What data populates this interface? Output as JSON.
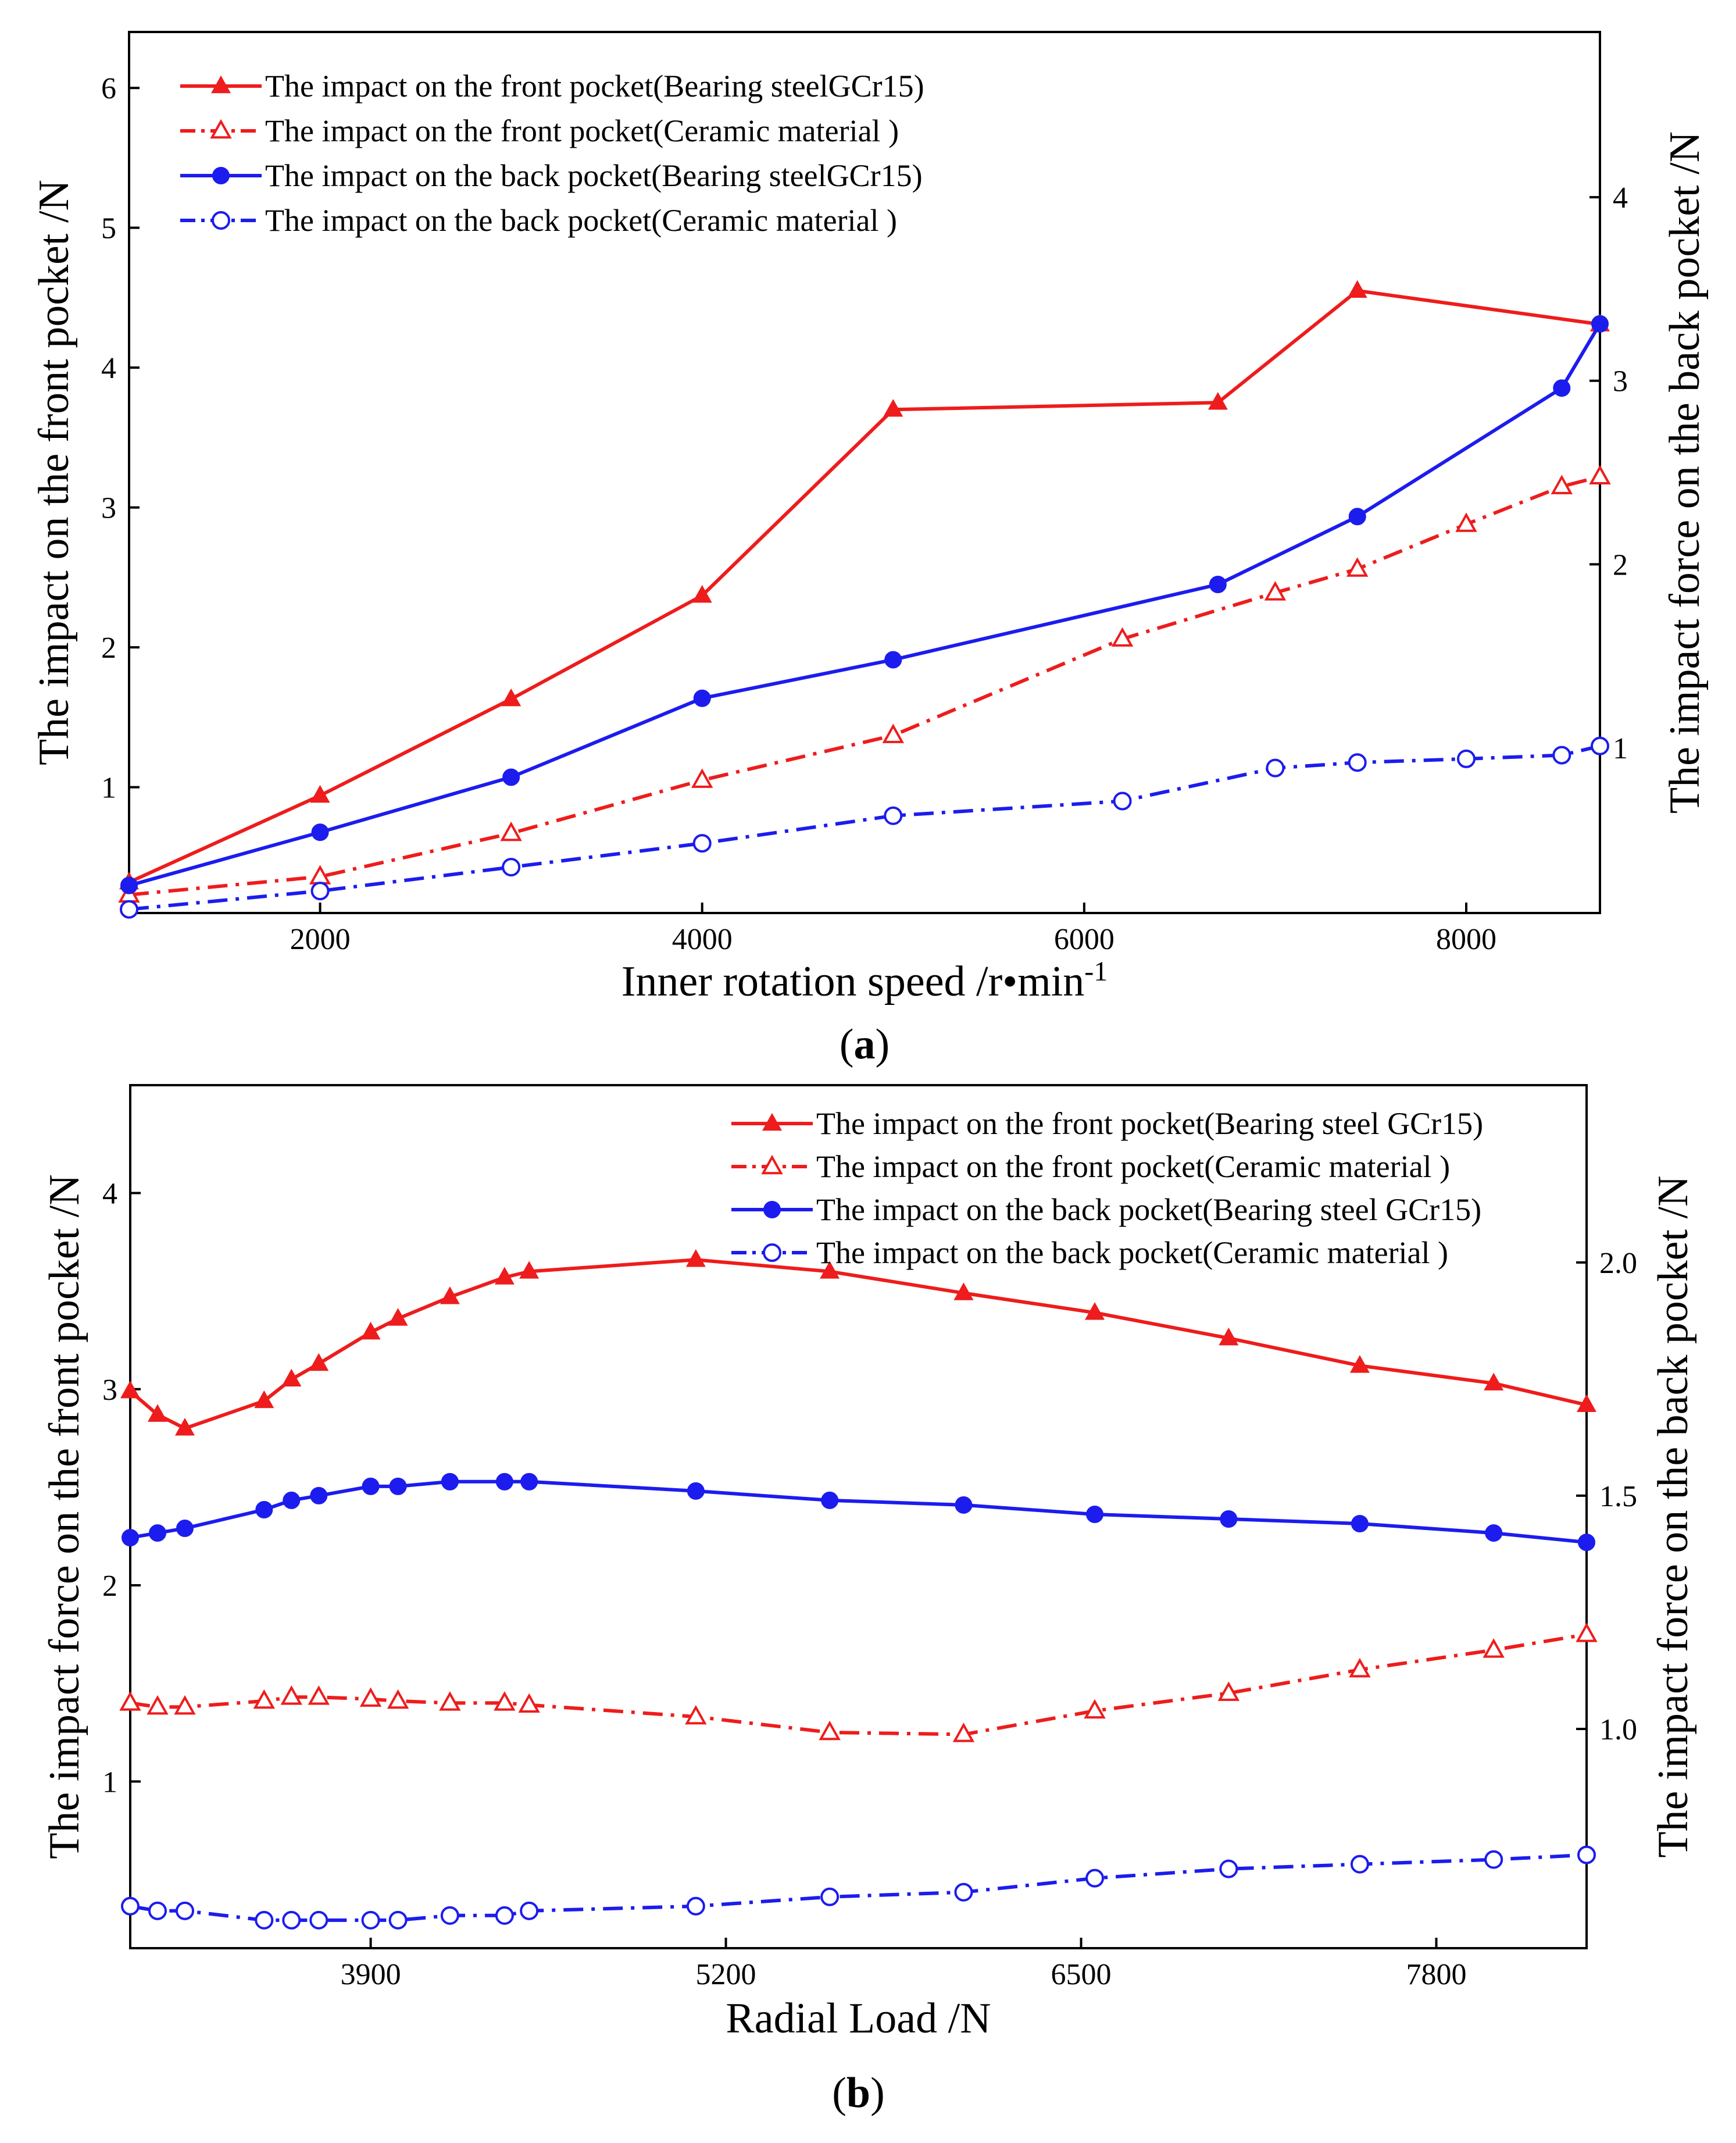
{
  "colors": {
    "red": "#ee1c1c",
    "blue": "#1c1cee",
    "axis": "#000000"
  },
  "chart_data": [
    {
      "type": "line",
      "caption_open": "(",
      "caption_letter": "a",
      "caption_close": ")",
      "xlabel_main": "Inner rotation speed  /r•min",
      "xlabel_sup": "-1",
      "ylabel_left": "The impact on the front pocket /N",
      "ylabel_right": "The impact force on the back pocket /N",
      "xlim": [
        1000,
        8700
      ],
      "ylim_left": [
        0.1,
        6.4
      ],
      "ylim_right": [
        0.1,
        4.9
      ],
      "xticks": [
        2000,
        4000,
        6000,
        8000
      ],
      "yticks_left": [
        1,
        2,
        3,
        4,
        5,
        6
      ],
      "yticks_right": [
        1,
        2,
        3,
        4
      ],
      "tick_labels_x": [
        "2000",
        "4000",
        "6000",
        "8000"
      ],
      "tick_labels_left": [
        "1",
        "2",
        "3",
        "4",
        "5",
        "6"
      ],
      "tick_labels_right": [
        "1",
        "2",
        "3",
        "4"
      ],
      "legend_position": "top-left",
      "series": [
        {
          "name": "The impact on the front pocket(Bearing steelGCr15)",
          "axis": "left",
          "color": "#ee1c1c",
          "dash": "solid",
          "marker": "triangle",
          "filled": true,
          "x": [
            1000,
            2000,
            3000,
            4000,
            5000,
            6700,
            7430,
            8700
          ],
          "y": [
            0.32,
            0.94,
            1.63,
            2.37,
            3.7,
            3.75,
            4.55,
            4.31
          ]
        },
        {
          "name": "The impact on the front pocket(Ceramic   material  )",
          "axis": "left",
          "color": "#ee1c1c",
          "dash": "dashdot",
          "marker": "triangle",
          "filled": false,
          "x": [
            1000,
            2000,
            3000,
            4000,
            5000,
            6200,
            7000,
            7430,
            8000,
            8500,
            8700
          ],
          "y": [
            0.23,
            0.36,
            0.67,
            1.05,
            1.37,
            2.06,
            2.39,
            2.56,
            2.88,
            3.15,
            3.22
          ]
        },
        {
          "name": "The impact on the back pocket(Bearing steelGCr15)",
          "axis": "right",
          "color": "#1c1cee",
          "dash": "solid",
          "marker": "circle",
          "filled": true,
          "x": [
            1000,
            2000,
            3000,
            4000,
            5000,
            6700,
            7430,
            8500,
            8700
          ],
          "y": [
            0.25,
            0.54,
            0.84,
            1.27,
            1.48,
            1.89,
            2.26,
            2.96,
            3.31
          ]
        },
        {
          "name": "The impact on the back pocket(Ceramic   material  )",
          "axis": "right",
          "color": "#1c1cee",
          "dash": "dashdot",
          "marker": "circle",
          "filled": false,
          "x": [
            1000,
            2000,
            3000,
            4000,
            5000,
            6200,
            7000,
            7430,
            8000,
            8500,
            8700
          ],
          "y": [
            0.12,
            0.22,
            0.35,
            0.48,
            0.63,
            0.71,
            0.89,
            0.92,
            0.94,
            0.96,
            1.01
          ]
        }
      ]
    },
    {
      "type": "line",
      "caption_open": "(",
      "caption_letter": "b",
      "caption_close": ")",
      "xlabel_main": "Radial Load /N",
      "xlabel_sup": "",
      "ylabel_left": "The impact force on the front pocket /N",
      "ylabel_right": "The impact force on the back pocket /N",
      "xlim": [
        3020,
        8350
      ],
      "ylim_left": [
        0.15,
        4.55
      ],
      "ylim_right": [
        0.53,
        2.38
      ],
      "xticks": [
        3900,
        5200,
        6500,
        7800
      ],
      "yticks_left": [
        1,
        2,
        3,
        4
      ],
      "yticks_right": [
        1.0,
        1.5,
        2.0
      ],
      "tick_labels_x": [
        "3900",
        "5200",
        "6500",
        "7800"
      ],
      "tick_labels_left": [
        "1",
        "2",
        "3",
        "4"
      ],
      "tick_labels_right": [
        "1.0",
        "1.5",
        "2.0"
      ],
      "legend_position": "top-right",
      "series": [
        {
          "name": "The impact on the front pocket(Bearing steel GCr15)",
          "axis": "left",
          "color": "#ee1c1c",
          "dash": "solid",
          "marker": "triangle",
          "filled": true,
          "x": [
            3020,
            3120,
            3220,
            3510,
            3610,
            3710,
            3900,
            4000,
            4190,
            4390,
            4480,
            5090,
            5580,
            6070,
            6550,
            7040,
            7520,
            8010,
            8350
          ],
          "y": [
            2.99,
            2.87,
            2.8,
            2.94,
            3.05,
            3.13,
            3.29,
            3.36,
            3.47,
            3.57,
            3.6,
            3.66,
            3.6,
            3.49,
            3.39,
            3.26,
            3.12,
            3.03,
            2.92
          ]
        },
        {
          "name": "The impact on the front pocket(Ceramic   material   )",
          "axis": "left",
          "color": "#ee1c1c",
          "dash": "dashdot",
          "marker": "triangle",
          "filled": false,
          "x": [
            3020,
            3120,
            3220,
            3510,
            3610,
            3710,
            3900,
            4000,
            4190,
            4390,
            4480,
            5090,
            5580,
            6070,
            6550,
            7040,
            7520,
            8010,
            8350
          ],
          "y": [
            1.4,
            1.38,
            1.38,
            1.41,
            1.43,
            1.43,
            1.42,
            1.41,
            1.4,
            1.4,
            1.39,
            1.33,
            1.25,
            1.24,
            1.36,
            1.45,
            1.57,
            1.67,
            1.75
          ]
        },
        {
          "name": "The impact on the back pocket(Bearing steel GCr15)",
          "axis": "right",
          "color": "#1c1cee",
          "dash": "solid",
          "marker": "circle",
          "filled": true,
          "x": [
            3020,
            3120,
            3220,
            3510,
            3610,
            3710,
            3900,
            4000,
            4190,
            4390,
            4480,
            5090,
            5580,
            6070,
            6550,
            7040,
            7520,
            8010,
            8350
          ],
          "y": [
            1.41,
            1.42,
            1.43,
            1.47,
            1.49,
            1.5,
            1.52,
            1.52,
            1.53,
            1.53,
            1.53,
            1.51,
            1.49,
            1.48,
            1.46,
            1.45,
            1.44,
            1.42,
            1.4
          ]
        },
        {
          "name": "The impact on the back pocket(Ceramic   material   )",
          "axis": "right",
          "color": "#1c1cee",
          "dash": "dashdot",
          "marker": "circle",
          "filled": false,
          "x": [
            3020,
            3120,
            3220,
            3510,
            3610,
            3710,
            3900,
            4000,
            4190,
            4390,
            4480,
            5090,
            5580,
            6070,
            6550,
            7040,
            7520,
            8010,
            8350
          ],
          "y": [
            0.62,
            0.61,
            0.61,
            0.59,
            0.59,
            0.59,
            0.59,
            0.59,
            0.6,
            0.6,
            0.61,
            0.62,
            0.64,
            0.65,
            0.68,
            0.7,
            0.71,
            0.72,
            0.73
          ]
        }
      ]
    }
  ]
}
